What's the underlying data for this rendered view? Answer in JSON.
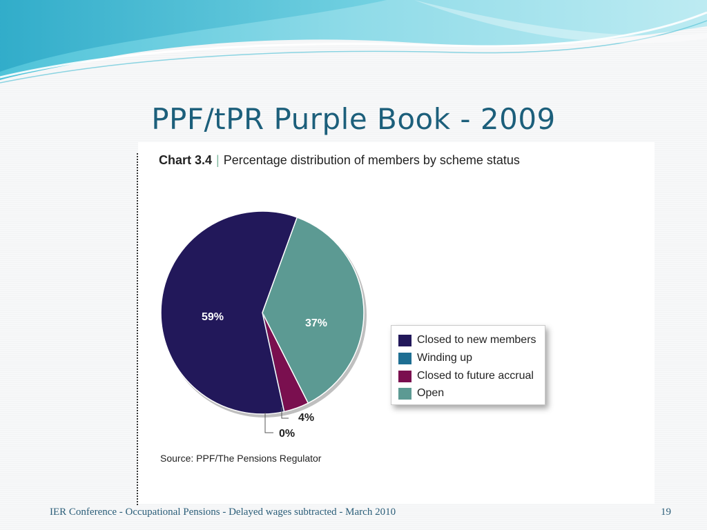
{
  "slide": {
    "title": "PPF/tPR Purple Book - 2009",
    "footer": "IER Conference - Occupational Pensions - Delayed wages subtracted - March 2010",
    "page_number": "19"
  },
  "chart": {
    "number_label": "Chart 3.4",
    "separator": "|",
    "heading": "Percentage distribution of members by scheme status",
    "source": "Source: PPF/The Pensions Regulator"
  },
  "colors": {
    "title": "#1c5f7b",
    "closed_to_new_members": "#22185a",
    "winding_up": "#1e6e92",
    "closed_to_future_accrual": "#7a0f4f",
    "open": "#5c9a93"
  },
  "chart_data": {
    "type": "pie",
    "title": "Percentage distribution of members by scheme status",
    "categories": [
      "Closed to new members",
      "Winding up",
      "Closed to future accrual",
      "Open"
    ],
    "values": [
      59,
      0,
      4,
      37
    ],
    "labels": [
      "59%",
      "0%",
      "4%",
      "37%"
    ],
    "legend_placement": "right"
  }
}
